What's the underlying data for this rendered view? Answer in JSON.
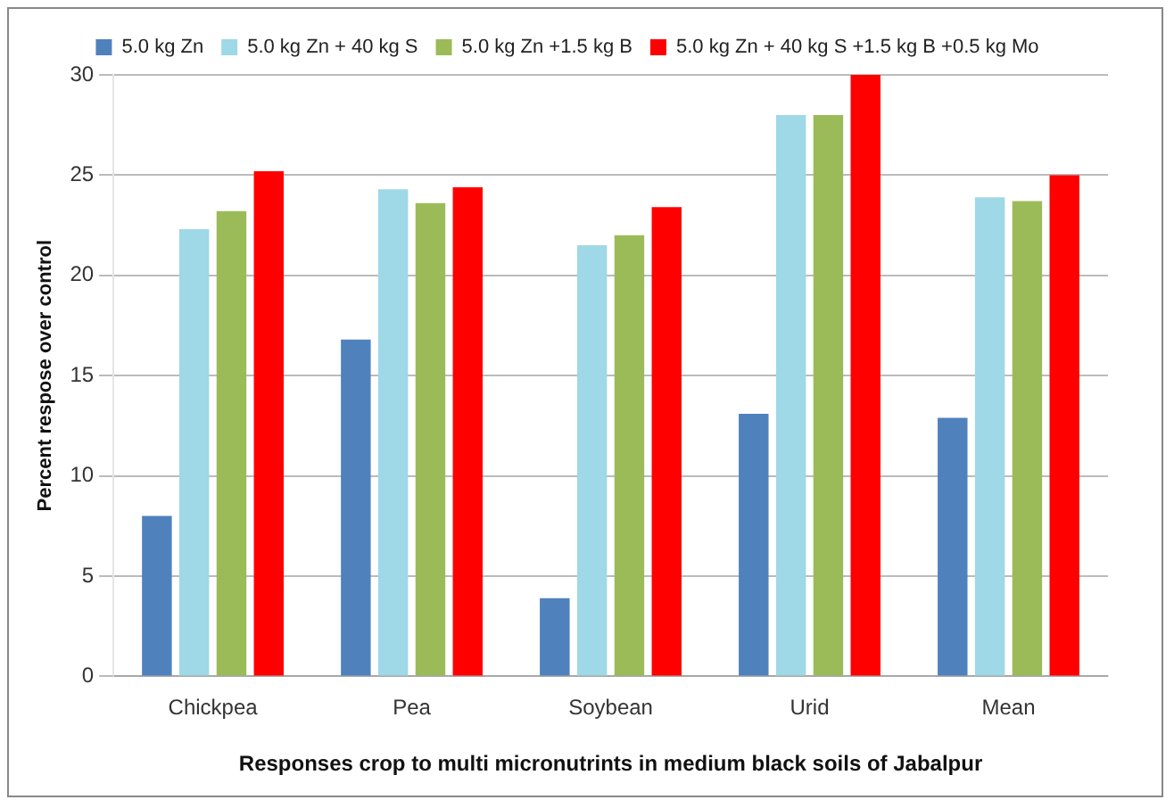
{
  "chart_data": {
    "type": "bar",
    "xlabel": "Responses crop to multi micronutrints in medium black soils of Jabalpur",
    "ylabel": "Percent respose over control",
    "categories": [
      "Chickpea",
      "Pea",
      "Soybean",
      "Urid",
      "Mean"
    ],
    "series": [
      {
        "name": "5.0 kg Zn",
        "color": "#4f81bd",
        "values": [
          8,
          16.8,
          3.9,
          13.1,
          12.9
        ]
      },
      {
        "name": "5.0 kg Zn + 40 kg S",
        "color": "#9fd8e6",
        "values": [
          22.3,
          24.3,
          21.5,
          28,
          23.9
        ]
      },
      {
        "name": "5.0 kg Zn +1.5 kg B",
        "color": "#9bbb59",
        "values": [
          23.2,
          23.6,
          22,
          28,
          23.7
        ]
      },
      {
        "name": "5.0 kg Zn + 40 kg S +1.5 kg B +0.5 kg Mo",
        "color": "#ff0000",
        "values": [
          25.2,
          24.4,
          23.4,
          30,
          25
        ]
      }
    ],
    "ylim": [
      0,
      30
    ],
    "yticks": [
      0,
      5,
      10,
      15,
      20,
      25,
      30
    ],
    "grid": "y",
    "legend": "top"
  }
}
